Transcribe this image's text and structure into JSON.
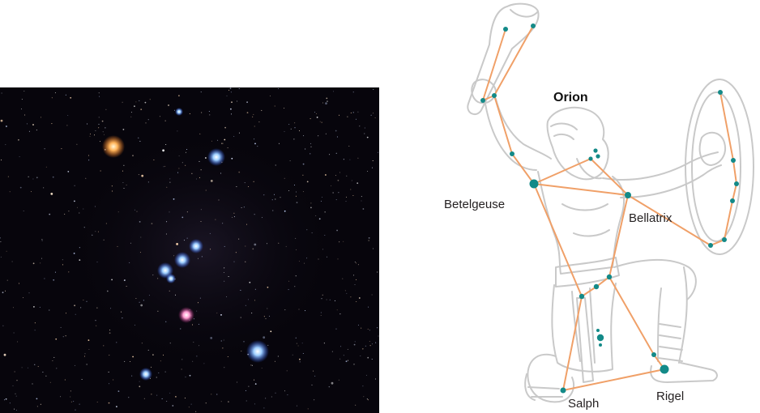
{
  "diagram": {
    "title": "Orion",
    "star_labels": {
      "betelgeuse": "Betelgeuse",
      "bellatrix": "Bellatrix",
      "salph": "Salph",
      "rigel": "Rigel"
    }
  },
  "colors": {
    "photo_background": "#07050c",
    "constellation_line": "#f0a068",
    "star_marker": "#138a88",
    "figure_outline": "#c9c9c9",
    "label_text": "#231f20"
  }
}
